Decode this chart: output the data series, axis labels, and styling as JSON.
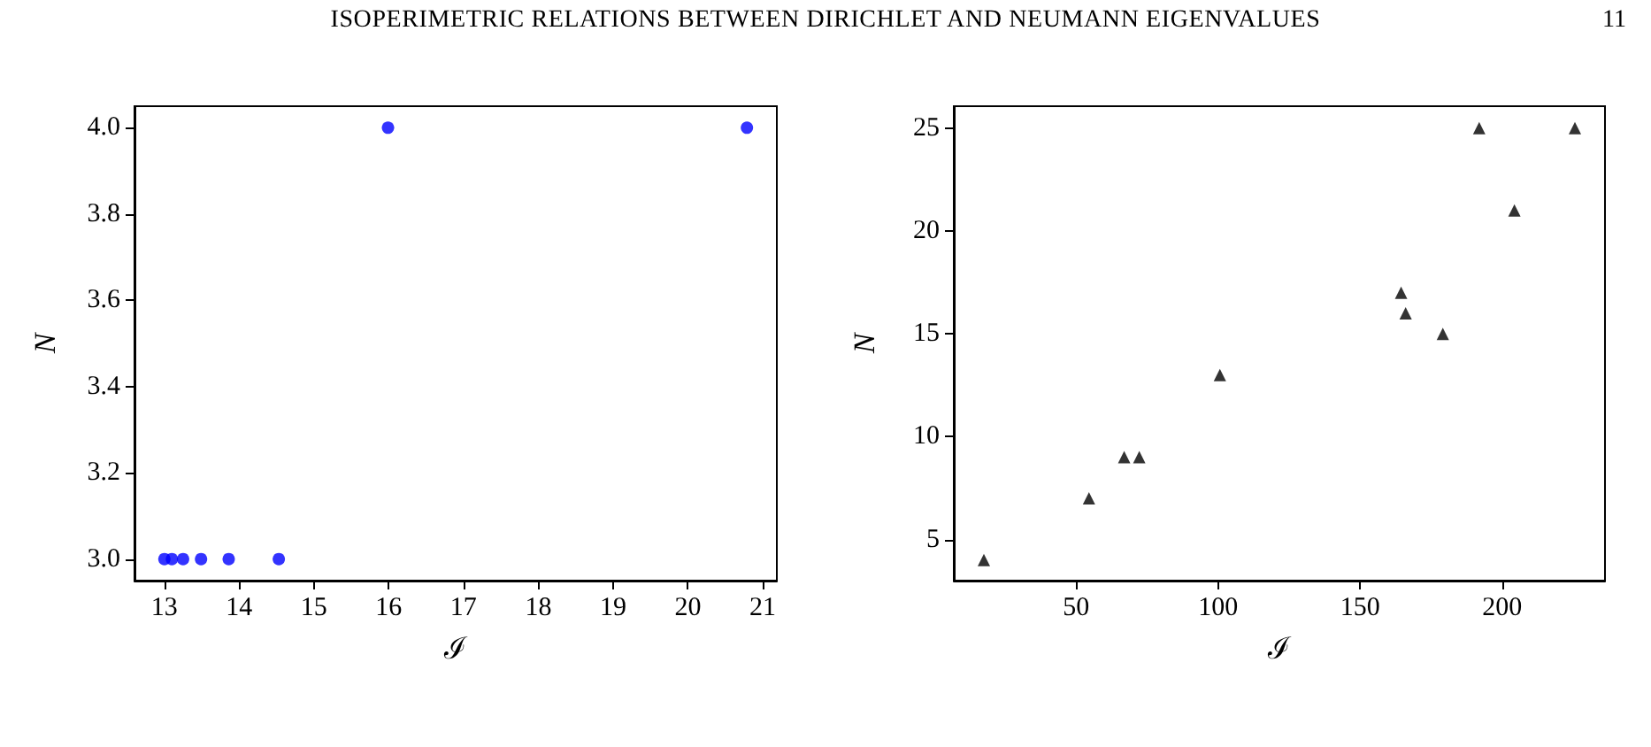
{
  "chart_data": [
    {
      "type": "scatter",
      "annotations": [
        "ISOPERIMETRIC RELATIONS BETWEEN DIRICHLET AND NEUMANN EIGENVALUES",
        "11"
      ],
      "xlabel": "ℐ",
      "ylabel": "N",
      "marker": "circle",
      "grid": false,
      "x": [
        13.0,
        13.1,
        13.25,
        13.49,
        13.86,
        14.53,
        15.99,
        20.79
      ],
      "series": [
        {
          "color": "#0000ff",
          "values": [
            3,
            3,
            3,
            3,
            3,
            3,
            4,
            4
          ]
        }
      ],
      "xlim": [
        12.6,
        21.19
      ],
      "xticks": [
        13,
        14,
        15,
        16,
        17,
        18,
        19,
        20,
        21
      ],
      "ylim": [
        2.95,
        4.05
      ],
      "yticks": [
        {
          "value": 3,
          "label": "3.0"
        },
        {
          "value": 3.2,
          "label": "3.2"
        },
        {
          "value": 3.4,
          "label": "3.4"
        },
        {
          "value": 3.6,
          "label": "3.6"
        },
        {
          "value": 3.8,
          "label": "3.8"
        },
        {
          "value": 4,
          "label": "4.0"
        }
      ]
    },
    {
      "type": "scatter",
      "xlabel": "ℐ",
      "ylabel": "N",
      "marker": "triangle",
      "grid": false,
      "x": [
        17.5,
        54.5,
        66.9,
        72.2,
        100.6,
        164.4,
        166,
        179.1,
        191.9,
        204.3,
        225.6
      ],
      "series": [
        {
          "color": "#000000",
          "values": [
            4,
            7,
            9,
            9,
            13,
            17,
            16,
            15,
            25,
            21,
            25
          ]
        }
      ],
      "xlim": [
        6.9,
        236.2
      ],
      "xticks": [
        50,
        100,
        150,
        200
      ],
      "ylim": [
        3.0,
        26.07
      ],
      "yticks": [
        5,
        10,
        15,
        20,
        25
      ]
    }
  ]
}
